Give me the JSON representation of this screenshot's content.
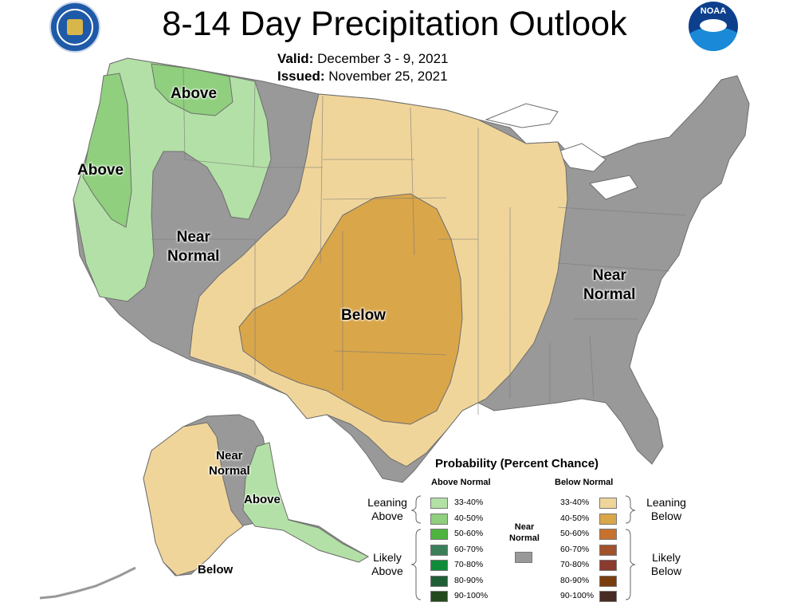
{
  "header": {
    "title": "8-14 Day Precipitation Outlook",
    "valid_label": "Valid:",
    "valid_dates": "December 3 - 9, 2021",
    "issued_label": "Issued:",
    "issued_date": "November 25, 2021",
    "left_logo": "commerce-seal-logo",
    "right_logo": "noaa-logo"
  },
  "map_labels": {
    "above_nw": "Above",
    "above_west": "Above",
    "near_normal_west": [
      "Near",
      "Normal"
    ],
    "below_central": "Below",
    "near_normal_east": [
      "Near",
      "Normal"
    ],
    "alaska_near_normal": [
      "Near",
      "Normal"
    ],
    "alaska_above": "Above",
    "alaska_below": "Below"
  },
  "legend": {
    "title": "Probability (Percent Chance)",
    "above_header": "Above Normal",
    "below_header": "Below Normal",
    "leaning_above": [
      "Leaning",
      "Above"
    ],
    "likely_above": [
      "Likely",
      "Above"
    ],
    "leaning_below": [
      "Leaning",
      "Below"
    ],
    "likely_below": [
      "Likely",
      "Below"
    ],
    "near_normal": [
      "Near",
      "Normal"
    ],
    "near_normal_color": "#999999",
    "above": [
      {
        "range": "33-40%",
        "color": "#b3e0a6"
      },
      {
        "range": "40-50%",
        "color": "#8fcf7e"
      },
      {
        "range": "50-60%",
        "color": "#4fb33f"
      },
      {
        "range": "60-70%",
        "color": "#3a7f5a"
      },
      {
        "range": "70-80%",
        "color": "#0f8c3a"
      },
      {
        "range": "80-90%",
        "color": "#1f5e36"
      },
      {
        "range": "90-100%",
        "color": "#234a1c"
      }
    ],
    "below": [
      {
        "range": "33-40%",
        "color": "#f0d59b"
      },
      {
        "range": "40-50%",
        "color": "#daa64a"
      },
      {
        "range": "50-60%",
        "color": "#c8712f"
      },
      {
        "range": "60-70%",
        "color": "#a0522d"
      },
      {
        "range": "70-80%",
        "color": "#8b3a2e"
      },
      {
        "range": "80-90%",
        "color": "#7a3e0e"
      },
      {
        "range": "90-100%",
        "color": "#4a2a24"
      }
    ]
  }
}
